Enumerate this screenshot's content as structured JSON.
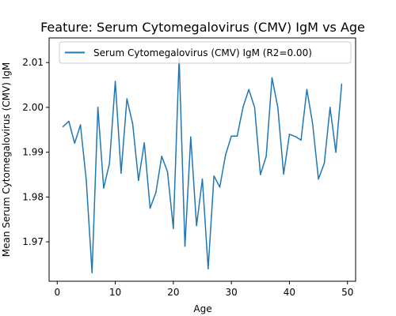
{
  "chart_data": {
    "type": "line",
    "title": "Feature: Serum Cytomegalovirus (CMV) IgM vs Age",
    "xlabel": "Age",
    "ylabel": "Mean Serum Cytomegalovirus (CMV) IgM",
    "xlim": [
      -1.4,
      51.4
    ],
    "ylim": [
      1.9612,
      2.0155
    ],
    "xticks": [
      0,
      10,
      20,
      30,
      40,
      50
    ],
    "xtick_labels": [
      "0",
      "10",
      "20",
      "30",
      "40",
      "50"
    ],
    "yticks": [
      1.97,
      1.98,
      1.99,
      2.0,
      2.01
    ],
    "ytick_labels": [
      "1.97",
      "1.98",
      "1.99",
      "2.00",
      "2.01"
    ],
    "grid": false,
    "legend_position": "top-right",
    "series": [
      {
        "name": "Serum Cytomegalovirus (CMV) IgM (R2=0.00)",
        "color": "#1f77b4",
        "x": [
          1,
          2,
          3,
          4,
          5,
          6,
          7,
          8,
          9,
          10,
          11,
          12,
          13,
          14,
          15,
          16,
          17,
          18,
          19,
          20,
          21,
          22,
          23,
          24,
          25,
          26,
          27,
          28,
          29,
          30,
          31,
          32,
          33,
          34,
          35,
          36,
          37,
          38,
          39,
          40,
          41,
          42,
          43,
          44,
          45,
          46,
          47,
          48,
          49
        ],
        "y": [
          1.9957,
          1.9969,
          1.992,
          1.9961,
          1.9838,
          1.9631,
          2.0,
          1.982,
          1.9875,
          2.0058,
          1.9853,
          2.0019,
          1.9963,
          1.9837,
          1.9921,
          1.9775,
          1.981,
          1.9891,
          1.9856,
          1.973,
          2.011,
          1.969,
          1.9934,
          1.9736,
          1.984,
          1.964,
          1.9847,
          1.9822,
          1.9894,
          1.9936,
          1.9936,
          2.0,
          2.004,
          2.0,
          1.985,
          1.9891,
          2.0066,
          2.0,
          1.9851,
          1.994,
          1.9935,
          1.9927,
          2.004,
          1.9963,
          1.984,
          1.9875,
          2.0,
          1.99,
          2.0052
        ]
      }
    ]
  }
}
